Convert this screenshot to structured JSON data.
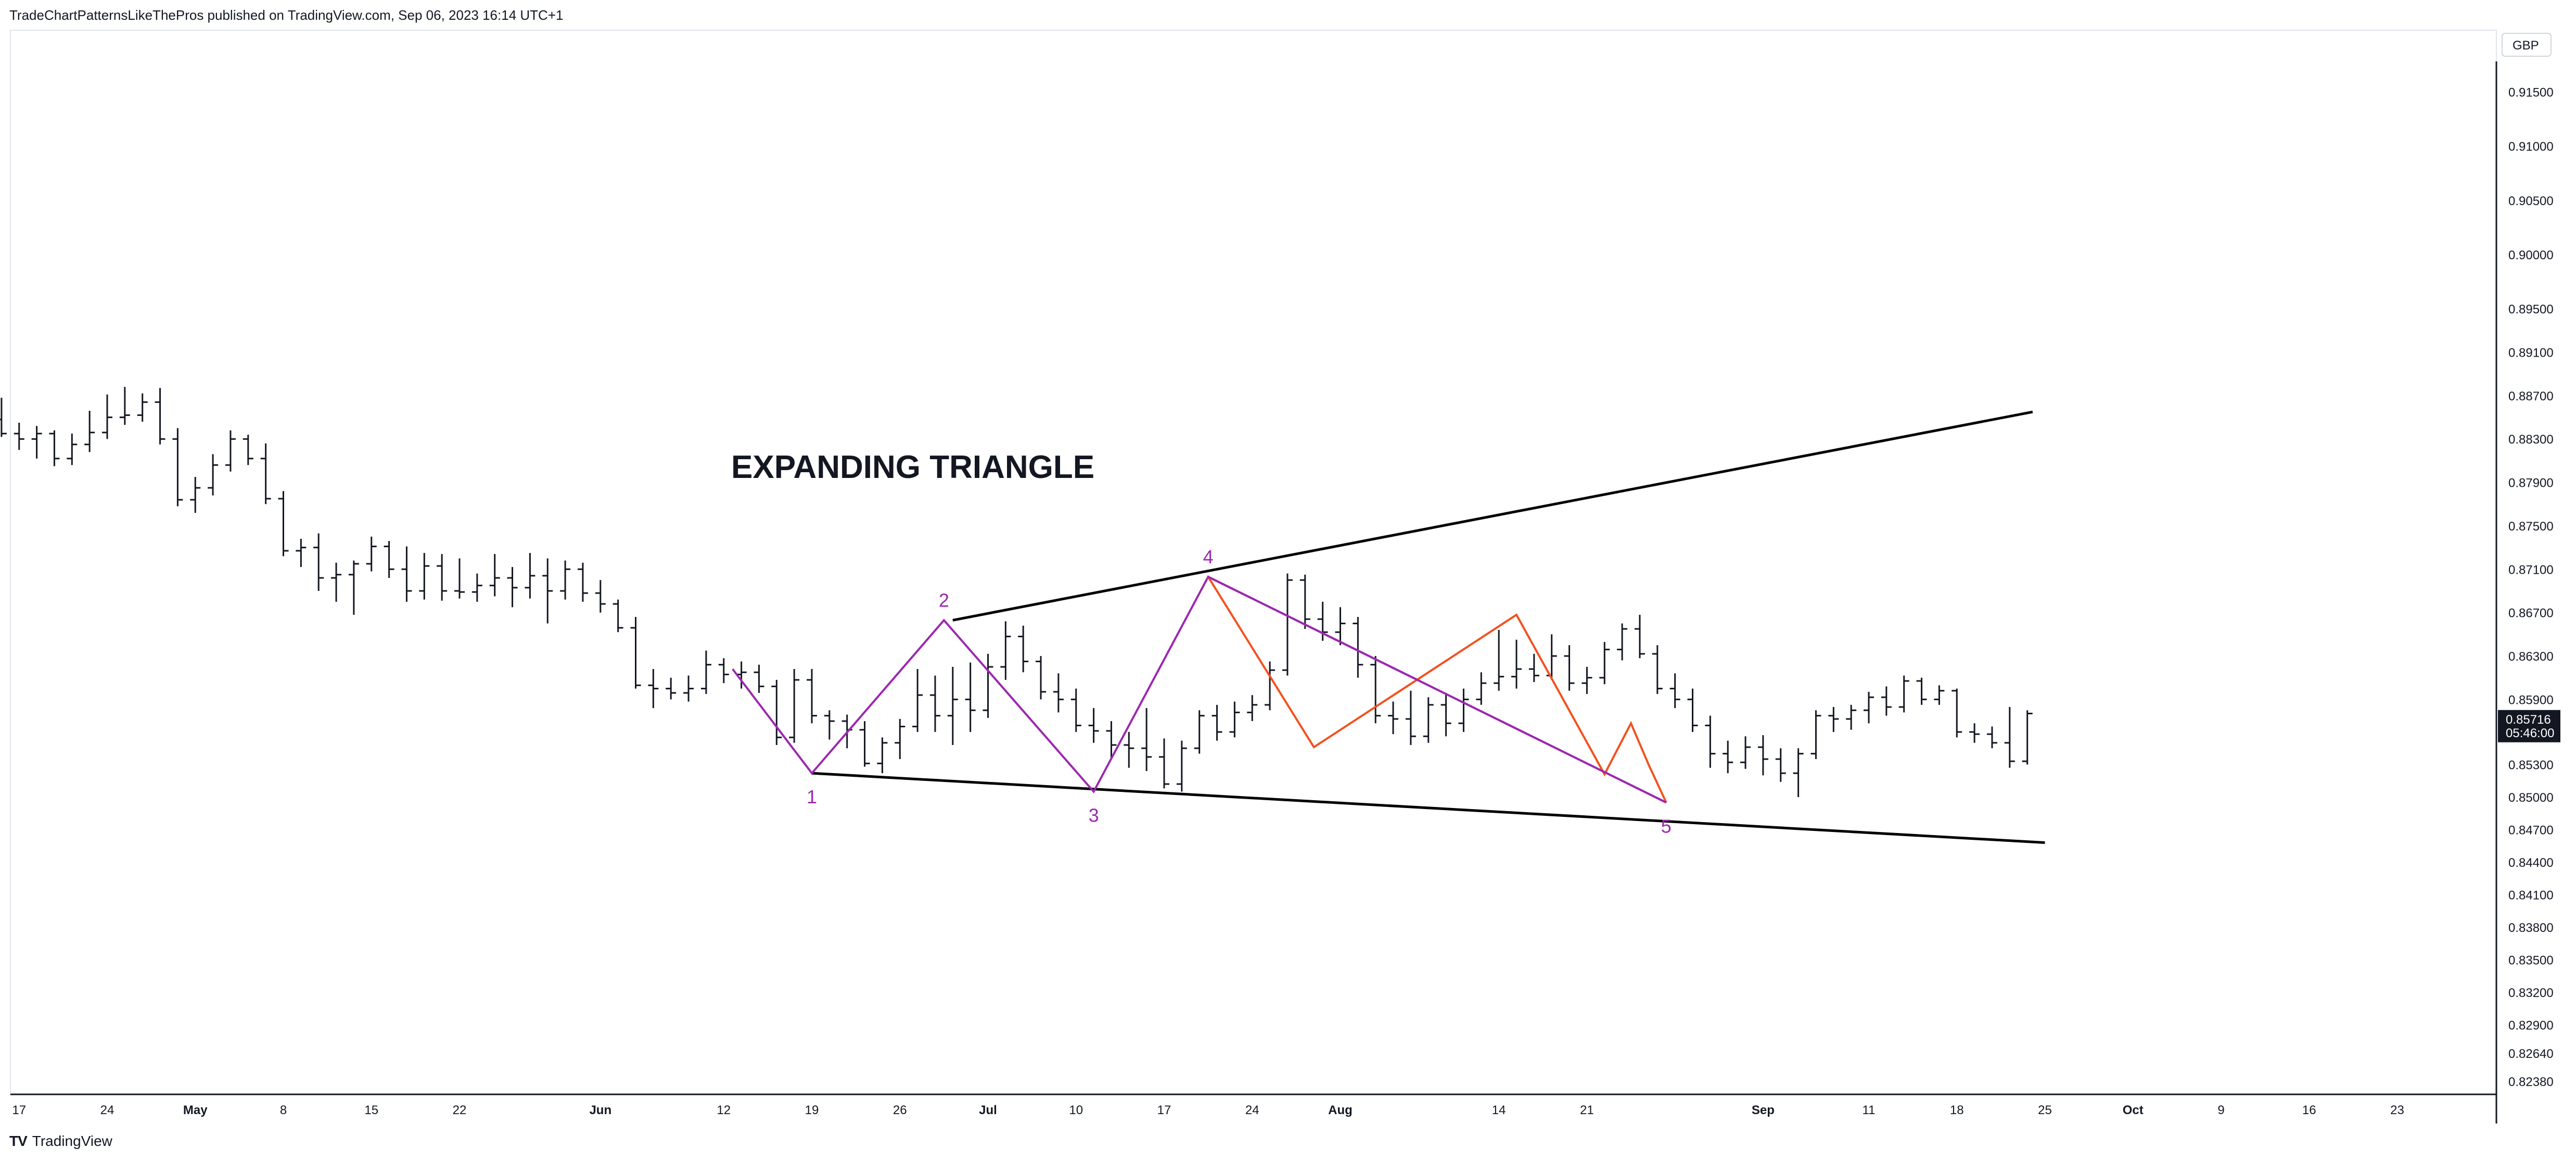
{
  "header": {
    "published": "TradeChartPatternsLikeThePros published on TradingView.com, Sep 06, 2023 16:14 UTC+1"
  },
  "footer": {
    "logo_text": "TV",
    "brand": "TradingView"
  },
  "chart_data": {
    "type": "ohlc",
    "title": "EXPANDING TRIANGLE",
    "currency": "GBP",
    "ylim": [
      0.8226,
      0.9178
    ],
    "y_ticks": [
      "0.91500",
      "0.91000",
      "0.90500",
      "0.90000",
      "0.89500",
      "0.89100",
      "0.88700",
      "0.88300",
      "0.87900",
      "0.87500",
      "0.87100",
      "0.86700",
      "0.86300",
      "0.85900",
      "0.85300",
      "0.85000",
      "0.84700",
      "0.84400",
      "0.84100",
      "0.83800",
      "0.83500",
      "0.83200",
      "0.82900",
      "0.82640",
      "0.82380"
    ],
    "x_ticks": [
      {
        "label": "17",
        "bar": -1
      },
      {
        "label": "24",
        "bar": 4
      },
      {
        "label": "May",
        "bar": 9
      },
      {
        "label": "8",
        "bar": 14
      },
      {
        "label": "15",
        "bar": 19
      },
      {
        "label": "22",
        "bar": 24
      },
      {
        "label": "Jun",
        "bar": 32
      },
      {
        "label": "12",
        "bar": 39
      },
      {
        "label": "19",
        "bar": 44
      },
      {
        "label": "26",
        "bar": 49
      },
      {
        "label": "Jul",
        "bar": 54
      },
      {
        "label": "10",
        "bar": 59
      },
      {
        "label": "17",
        "bar": 64
      },
      {
        "label": "24",
        "bar": 69
      },
      {
        "label": "Aug",
        "bar": 74
      },
      {
        "label": "14",
        "bar": 83
      },
      {
        "label": "21",
        "bar": 88
      },
      {
        "label": "Sep",
        "bar": 98
      },
      {
        "label": "11",
        "bar": 104
      },
      {
        "label": "18",
        "bar": 109
      },
      {
        "label": "25",
        "bar": 114
      },
      {
        "label": "Oct",
        "bar": 119
      },
      {
        "label": "9",
        "bar": 124
      },
      {
        "label": "16",
        "bar": 129
      },
      {
        "label": "23",
        "bar": 134
      }
    ],
    "last_price": {
      "value": "0.85716",
      "countdown": "05:46:00",
      "price": 0.85716
    },
    "ohlc": [
      {
        "o": 0.8848,
        "h": 0.8868,
        "l": 0.8832,
        "c": 0.8835
      },
      {
        "o": 0.8835,
        "h": 0.8845,
        "l": 0.882,
        "c": 0.883
      },
      {
        "o": 0.883,
        "h": 0.8842,
        "l": 0.8812,
        "c": 0.8835
      },
      {
        "o": 0.8835,
        "h": 0.8838,
        "l": 0.8805,
        "c": 0.8812
      },
      {
        "o": 0.8812,
        "h": 0.8835,
        "l": 0.8806,
        "c": 0.8825
      },
      {
        "o": 0.8825,
        "h": 0.8856,
        "l": 0.8818,
        "c": 0.8836
      },
      {
        "o": 0.8836,
        "h": 0.8871,
        "l": 0.883,
        "c": 0.885
      },
      {
        "o": 0.885,
        "h": 0.8878,
        "l": 0.8843,
        "c": 0.8852
      },
      {
        "o": 0.8852,
        "h": 0.8872,
        "l": 0.8846,
        "c": 0.8864
      },
      {
        "o": 0.8864,
        "h": 0.8877,
        "l": 0.8825,
        "c": 0.883
      },
      {
        "o": 0.883,
        "h": 0.884,
        "l": 0.8768,
        "c": 0.8774
      },
      {
        "o": 0.8774,
        "h": 0.8795,
        "l": 0.8762,
        "c": 0.8785
      },
      {
        "o": 0.8785,
        "h": 0.8816,
        "l": 0.8778,
        "c": 0.8806
      },
      {
        "o": 0.8806,
        "h": 0.8838,
        "l": 0.88,
        "c": 0.883
      },
      {
        "o": 0.883,
        "h": 0.8834,
        "l": 0.8806,
        "c": 0.8812
      },
      {
        "o": 0.8812,
        "h": 0.8826,
        "l": 0.877,
        "c": 0.8775
      },
      {
        "o": 0.8775,
        "h": 0.8782,
        "l": 0.8722,
        "c": 0.8727
      },
      {
        "o": 0.8727,
        "h": 0.8738,
        "l": 0.8712,
        "c": 0.873
      },
      {
        "o": 0.873,
        "h": 0.8743,
        "l": 0.869,
        "c": 0.8702
      },
      {
        "o": 0.8702,
        "h": 0.8716,
        "l": 0.868,
        "c": 0.8705
      },
      {
        "o": 0.8705,
        "h": 0.8718,
        "l": 0.8668,
        "c": 0.8715
      },
      {
        "o": 0.8715,
        "h": 0.874,
        "l": 0.8708,
        "c": 0.8731
      },
      {
        "o": 0.8731,
        "h": 0.8736,
        "l": 0.8702,
        "c": 0.871
      },
      {
        "o": 0.871,
        "h": 0.8731,
        "l": 0.868,
        "c": 0.869
      },
      {
        "o": 0.869,
        "h": 0.8725,
        "l": 0.8682,
        "c": 0.8713
      },
      {
        "o": 0.8713,
        "h": 0.8724,
        "l": 0.8681,
        "c": 0.869
      },
      {
        "o": 0.869,
        "h": 0.872,
        "l": 0.8683,
        "c": 0.8689
      },
      {
        "o": 0.8689,
        "h": 0.8706,
        "l": 0.868,
        "c": 0.8695
      },
      {
        "o": 0.8695,
        "h": 0.8724,
        "l": 0.8685,
        "c": 0.8702
      },
      {
        "o": 0.8702,
        "h": 0.8712,
        "l": 0.8675,
        "c": 0.8693
      },
      {
        "o": 0.8693,
        "h": 0.8725,
        "l": 0.8683,
        "c": 0.8704
      },
      {
        "o": 0.8704,
        "h": 0.872,
        "l": 0.866,
        "c": 0.869
      },
      {
        "o": 0.869,
        "h": 0.8718,
        "l": 0.8682,
        "c": 0.871
      },
      {
        "o": 0.871,
        "h": 0.8716,
        "l": 0.868,
        "c": 0.8688
      },
      {
        "o": 0.8688,
        "h": 0.87,
        "l": 0.867,
        "c": 0.8678
      },
      {
        "o": 0.8678,
        "h": 0.8682,
        "l": 0.8652,
        "c": 0.8656
      },
      {
        "o": 0.8656,
        "h": 0.8666,
        "l": 0.86,
        "c": 0.8603
      },
      {
        "o": 0.8603,
        "h": 0.8618,
        "l": 0.8582,
        "c": 0.86
      },
      {
        "o": 0.86,
        "h": 0.861,
        "l": 0.859,
        "c": 0.8596
      },
      {
        "o": 0.8596,
        "h": 0.8612,
        "l": 0.8588,
        "c": 0.86
      },
      {
        "o": 0.86,
        "h": 0.8635,
        "l": 0.8595,
        "c": 0.8622
      },
      {
        "o": 0.8622,
        "h": 0.8628,
        "l": 0.8605,
        "c": 0.8613
      },
      {
        "o": 0.8613,
        "h": 0.8625,
        "l": 0.86,
        "c": 0.8615
      },
      {
        "o": 0.8615,
        "h": 0.8622,
        "l": 0.8596,
        "c": 0.8602
      },
      {
        "o": 0.8602,
        "h": 0.8608,
        "l": 0.8548,
        "c": 0.8555
      },
      {
        "o": 0.8555,
        "h": 0.8618,
        "l": 0.855,
        "c": 0.8608
      },
      {
        "o": 0.8608,
        "h": 0.8618,
        "l": 0.8568,
        "c": 0.8575
      },
      {
        "o": 0.8575,
        "h": 0.858,
        "l": 0.8553,
        "c": 0.857
      },
      {
        "o": 0.857,
        "h": 0.8576,
        "l": 0.8545,
        "c": 0.8562
      },
      {
        "o": 0.8562,
        "h": 0.857,
        "l": 0.8528,
        "c": 0.8531
      }
    ],
    "ohlc_start_bar": -2,
    "ohlc_continued": [
      {
        "o": 0.8531,
        "h": 0.8555,
        "l": 0.8522,
        "c": 0.855
      },
      {
        "o": 0.855,
        "h": 0.8572,
        "l": 0.8535,
        "c": 0.8565
      },
      {
        "o": 0.8565,
        "h": 0.8618,
        "l": 0.856,
        "c": 0.8594
      },
      {
        "o": 0.8594,
        "h": 0.8612,
        "l": 0.856,
        "c": 0.8575
      },
      {
        "o": 0.8575,
        "h": 0.862,
        "l": 0.8548,
        "c": 0.859
      },
      {
        "o": 0.859,
        "h": 0.8624,
        "l": 0.856,
        "c": 0.858
      },
      {
        "o": 0.858,
        "h": 0.8632,
        "l": 0.8573,
        "c": 0.862
      },
      {
        "o": 0.862,
        "h": 0.8662,
        "l": 0.8608,
        "c": 0.8648
      },
      {
        "o": 0.8648,
        "h": 0.8658,
        "l": 0.8615,
        "c": 0.8625
      },
      {
        "o": 0.8625,
        "h": 0.863,
        "l": 0.859,
        "c": 0.8597
      },
      {
        "o": 0.8597,
        "h": 0.8614,
        "l": 0.8578,
        "c": 0.859
      },
      {
        "o": 0.859,
        "h": 0.86,
        "l": 0.856,
        "c": 0.8566
      },
      {
        "o": 0.8566,
        "h": 0.8582,
        "l": 0.855,
        "c": 0.8561
      },
      {
        "o": 0.8561,
        "h": 0.857,
        "l": 0.8535,
        "c": 0.8548
      },
      {
        "o": 0.8548,
        "h": 0.856,
        "l": 0.8527,
        "c": 0.8545
      },
      {
        "o": 0.8545,
        "h": 0.8582,
        "l": 0.8524,
        "c": 0.8537
      },
      {
        "o": 0.8537,
        "h": 0.8554,
        "l": 0.8508,
        "c": 0.8512
      },
      {
        "o": 0.8512,
        "h": 0.8552,
        "l": 0.8505,
        "c": 0.8545
      },
      {
        "o": 0.8545,
        "h": 0.858,
        "l": 0.854,
        "c": 0.8575
      },
      {
        "o": 0.8575,
        "h": 0.8585,
        "l": 0.8552,
        "c": 0.856
      },
      {
        "o": 0.856,
        "h": 0.8588,
        "l": 0.8555,
        "c": 0.8578
      },
      {
        "o": 0.8578,
        "h": 0.8594,
        "l": 0.857,
        "c": 0.8585
      },
      {
        "o": 0.8585,
        "h": 0.8625,
        "l": 0.858,
        "c": 0.8617
      },
      {
        "o": 0.8617,
        "h": 0.8706,
        "l": 0.8612,
        "c": 0.87
      },
      {
        "o": 0.87,
        "h": 0.8705,
        "l": 0.8655,
        "c": 0.8664
      },
      {
        "o": 0.8664,
        "h": 0.868,
        "l": 0.8644,
        "c": 0.8652
      },
      {
        "o": 0.8652,
        "h": 0.8675,
        "l": 0.864,
        "c": 0.866
      },
      {
        "o": 0.866,
        "h": 0.8666,
        "l": 0.861,
        "c": 0.8622
      },
      {
        "o": 0.8622,
        "h": 0.863,
        "l": 0.8568,
        "c": 0.8575
      },
      {
        "o": 0.8575,
        "h": 0.8588,
        "l": 0.8558,
        "c": 0.8572
      },
      {
        "o": 0.8572,
        "h": 0.8598,
        "l": 0.8548,
        "c": 0.8556
      },
      {
        "o": 0.8556,
        "h": 0.8592,
        "l": 0.855,
        "c": 0.8585
      },
      {
        "o": 0.8585,
        "h": 0.8596,
        "l": 0.8556,
        "c": 0.8568
      },
      {
        "o": 0.8568,
        "h": 0.86,
        "l": 0.856,
        "c": 0.859
      },
      {
        "o": 0.859,
        "h": 0.8615,
        "l": 0.8585,
        "c": 0.8605
      },
      {
        "o": 0.8605,
        "h": 0.8654,
        "l": 0.8598,
        "c": 0.8611
      },
      {
        "o": 0.8611,
        "h": 0.8645,
        "l": 0.86,
        "c": 0.8618
      },
      {
        "o": 0.8618,
        "h": 0.8632,
        "l": 0.8606,
        "c": 0.8612
      },
      {
        "o": 0.8612,
        "h": 0.865,
        "l": 0.8608,
        "c": 0.863
      },
      {
        "o": 0.863,
        "h": 0.864,
        "l": 0.8598,
        "c": 0.8605
      },
      {
        "o": 0.8605,
        "h": 0.862,
        "l": 0.8595,
        "c": 0.861
      },
      {
        "o": 0.861,
        "h": 0.8643,
        "l": 0.8604,
        "c": 0.8636
      },
      {
        "o": 0.8636,
        "h": 0.866,
        "l": 0.8626,
        "c": 0.8655
      },
      {
        "o": 0.8655,
        "h": 0.8668,
        "l": 0.8628,
        "c": 0.8632
      },
      {
        "o": 0.8632,
        "h": 0.864,
        "l": 0.8595,
        "c": 0.86
      },
      {
        "o": 0.86,
        "h": 0.8614,
        "l": 0.8582,
        "c": 0.859
      },
      {
        "o": 0.859,
        "h": 0.86,
        "l": 0.856,
        "c": 0.8566
      },
      {
        "o": 0.8566,
        "h": 0.8575,
        "l": 0.8527,
        "c": 0.854
      },
      {
        "o": 0.854,
        "h": 0.8552,
        "l": 0.8522,
        "c": 0.8532
      },
      {
        "o": 0.8532,
        "h": 0.8556,
        "l": 0.8526,
        "c": 0.8546
      },
      {
        "o": 0.8546,
        "h": 0.8557,
        "l": 0.852,
        "c": 0.8535
      },
      {
        "o": 0.8535,
        "h": 0.8545,
        "l": 0.8514,
        "c": 0.8522
      },
      {
        "o": 0.8522,
        "h": 0.8545,
        "l": 0.85,
        "c": 0.854
      },
      {
        "o": 0.854,
        "h": 0.858,
        "l": 0.8535,
        "c": 0.8575
      },
      {
        "o": 0.8575,
        "h": 0.8583,
        "l": 0.856,
        "c": 0.8572
      },
      {
        "o": 0.8572,
        "h": 0.8585,
        "l": 0.8562,
        "c": 0.858
      },
      {
        "o": 0.858,
        "h": 0.8597,
        "l": 0.8568,
        "c": 0.8592
      },
      {
        "o": 0.8592,
        "h": 0.8602,
        "l": 0.8575,
        "c": 0.8583
      },
      {
        "o": 0.8583,
        "h": 0.8612,
        "l": 0.8578,
        "c": 0.8607
      },
      {
        "o": 0.8607,
        "h": 0.861,
        "l": 0.8585,
        "c": 0.859
      },
      {
        "o": 0.859,
        "h": 0.8603,
        "l": 0.8585,
        "c": 0.8598
      },
      {
        "o": 0.8598,
        "h": 0.86,
        "l": 0.8555,
        "c": 0.856
      },
      {
        "o": 0.856,
        "h": 0.8568,
        "l": 0.855,
        "c": 0.8558
      },
      {
        "o": 0.8558,
        "h": 0.8565,
        "l": 0.8545,
        "c": 0.855
      },
      {
        "o": 0.855,
        "h": 0.8583,
        "l": 0.8527,
        "c": 0.8533
      },
      {
        "o": 0.8533,
        "h": 0.858,
        "l": 0.853,
        "c": 0.8577
      }
    ],
    "trendlines": [
      {
        "name": "upper",
        "color": "#000000",
        "from": {
          "bar": 52,
          "price": 0.8663
        },
        "to": {
          "bar": 113.3,
          "price": 0.8855
        }
      },
      {
        "name": "lower",
        "color": "#000000",
        "from": {
          "bar": 44,
          "price": 0.8522
        },
        "to": {
          "bar": 114,
          "price": 0.8458
        }
      }
    ],
    "waves": {
      "color": "#9c27b0",
      "points": [
        {
          "bar": 39.5,
          "price": 0.8618,
          "label": ""
        },
        {
          "bar": 44,
          "price": 0.8522,
          "label": "1"
        },
        {
          "bar": 51.5,
          "price": 0.8663,
          "label": "2"
        },
        {
          "bar": 60,
          "price": 0.8505,
          "label": "3"
        },
        {
          "bar": 66.5,
          "price": 0.8703,
          "label": "4"
        },
        {
          "bar": 92.5,
          "price": 0.8495,
          "label": "5"
        }
      ]
    },
    "subwaves": {
      "color": "#f4511e",
      "points": [
        {
          "bar": 66.5,
          "price": 0.8703
        },
        {
          "bar": 72.5,
          "price": 0.8546
        },
        {
          "bar": 84,
          "price": 0.8668
        },
        {
          "bar": 89,
          "price": 0.8521
        },
        {
          "bar": 90.5,
          "price": 0.8568
        },
        {
          "bar": 91.5,
          "price": 0.853
        },
        {
          "bar": 92.5,
          "price": 0.8495
        }
      ]
    }
  }
}
